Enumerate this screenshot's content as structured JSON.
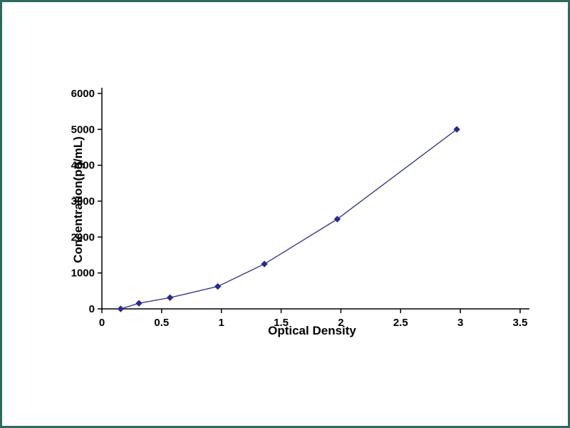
{
  "frame_color": "#2e6a5e",
  "chart_data": {
    "type": "line",
    "title": "",
    "xlabel": "Optical Density",
    "ylabel": "Concentration(pg/mL)",
    "x": [
      0.157,
      0.31,
      0.57,
      0.97,
      1.36,
      1.97,
      2.97
    ],
    "y": [
      0,
      156,
      312.5,
      625,
      1250,
      2500,
      5000
    ],
    "xlim": [
      0,
      3.5
    ],
    "ylim": [
      0,
      6000
    ],
    "x_ticks": [
      0,
      0.5,
      1,
      1.5,
      2,
      2.5,
      3,
      3.5
    ],
    "y_ticks": [
      0,
      1000,
      2000,
      3000,
      4000,
      5000,
      6000
    ],
    "line_color": "#2b2b8c",
    "marker": "diamond",
    "marker_color": "#2b2b8c",
    "axis_color": "#000000",
    "grid": false,
    "legend": null
  }
}
